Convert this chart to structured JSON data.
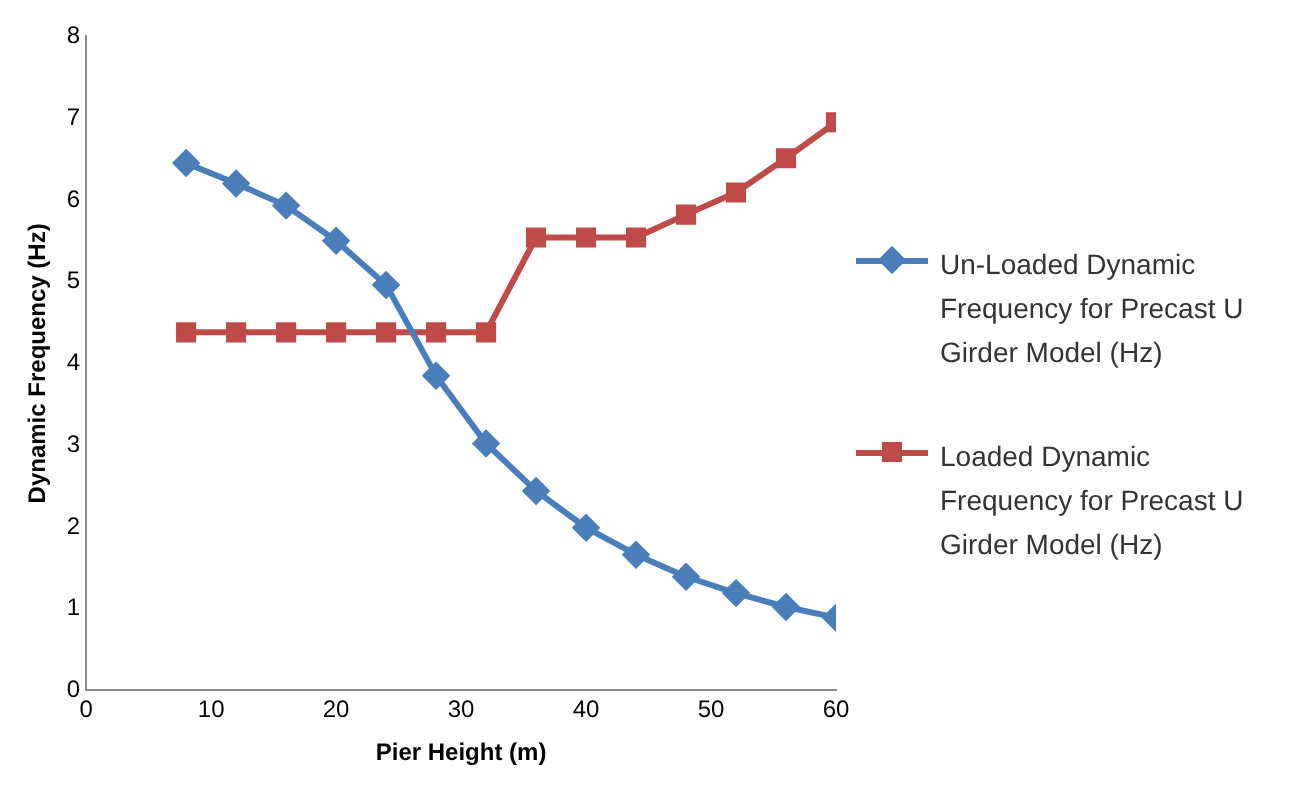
{
  "chart_data": {
    "type": "line",
    "xlabel": "Pier Height (m)",
    "ylabel": "Dynamic Frequency (Hz)",
    "x": [
      8,
      12,
      16,
      20,
      24,
      28,
      32,
      36,
      40,
      44,
      48,
      52,
      56,
      60
    ],
    "xlim": [
      0,
      60
    ],
    "xticks": [
      0,
      10,
      20,
      30,
      40,
      50,
      60
    ],
    "ylim": [
      0,
      8
    ],
    "yticks": [
      0,
      1,
      2,
      3,
      4,
      5,
      6,
      7,
      8
    ],
    "grid": false,
    "legend": "right",
    "line_style": "solid",
    "series": [
      {
        "name": "Un-Loaded Dynamic Frequency for Precast U Girder Model (Hz)",
        "color": "#4a7ebb",
        "marker": "diamond",
        "values": [
          6.45,
          6.2,
          5.93,
          5.5,
          4.96,
          3.85,
          3.02,
          2.44,
          1.99,
          1.66,
          1.39,
          1.19,
          1.02,
          0.89
        ]
      },
      {
        "name": "Loaded Dynamic Frequency for Precast U Girder Model (Hz)",
        "color": "#be4b48",
        "marker": "square",
        "values": [
          4.38,
          4.38,
          4.38,
          4.38,
          4.38,
          4.38,
          4.38,
          5.54,
          5.54,
          5.54,
          5.82,
          6.09,
          6.51,
          6.95
        ]
      }
    ]
  }
}
